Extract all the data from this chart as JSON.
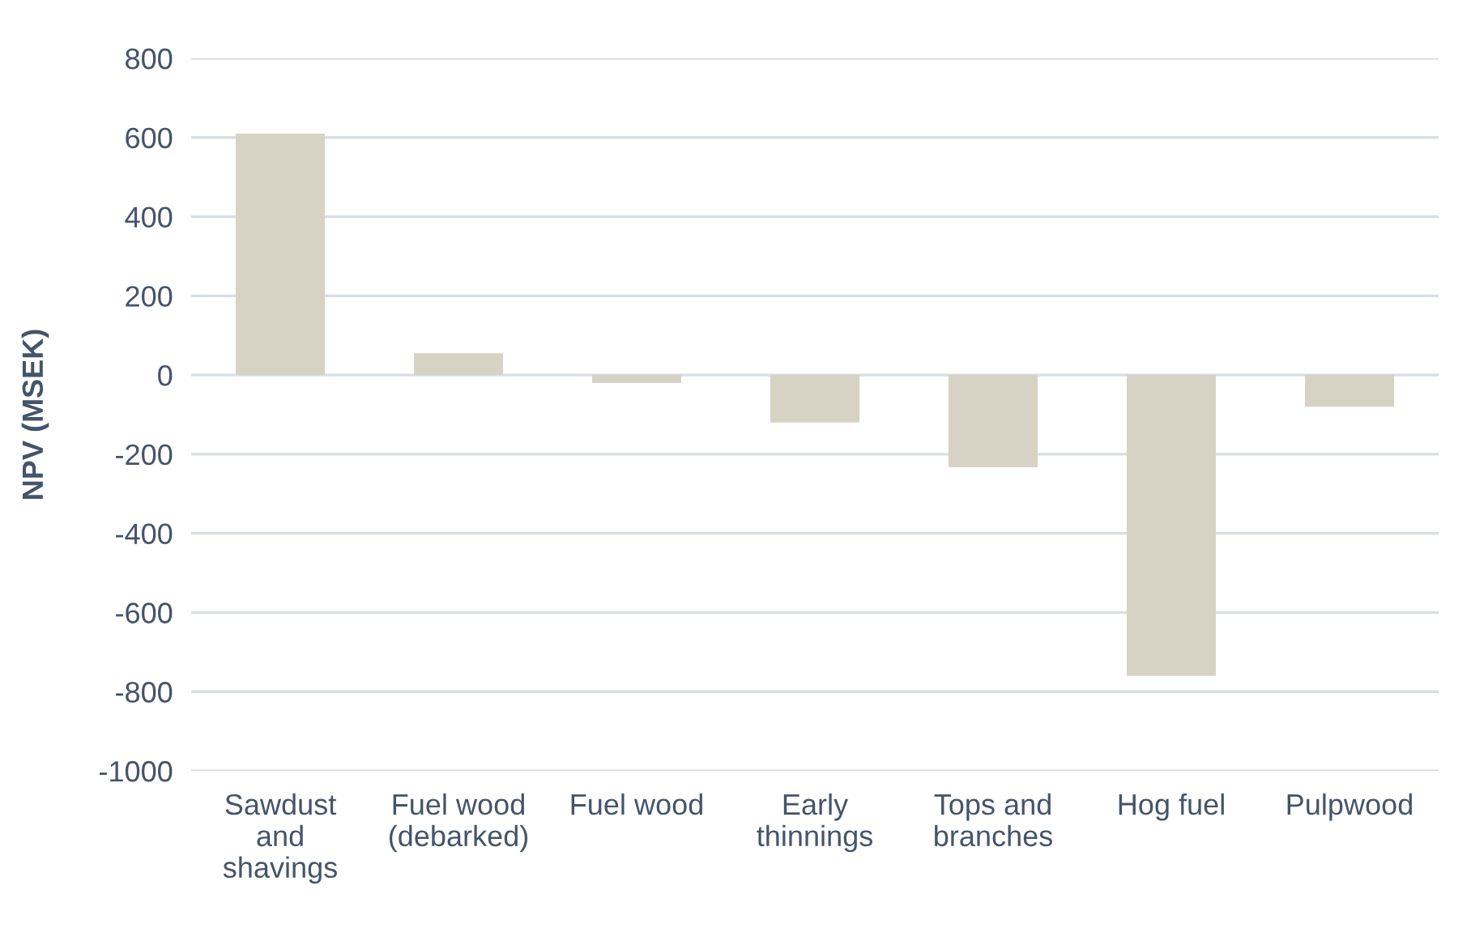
{
  "chart_data": {
    "type": "bar",
    "ylabel": "NPV (MSEK)",
    "categories": [
      "Sawdust and shavings",
      "Fuel wood (debarked)",
      "Fuel wood",
      "Early thinnings",
      "Tops and branches",
      "Hog fuel",
      "Pulpwood"
    ],
    "values": [
      610,
      55,
      -20,
      -120,
      -233,
      -760,
      -80
    ],
    "color": "#d6d3c4",
    "ylim": [
      -1000,
      800
    ],
    "yticks": [
      -1000,
      -800,
      -600,
      -400,
      -200,
      0,
      200,
      400,
      600,
      800
    ],
    "grid": "y",
    "legend": false
  }
}
